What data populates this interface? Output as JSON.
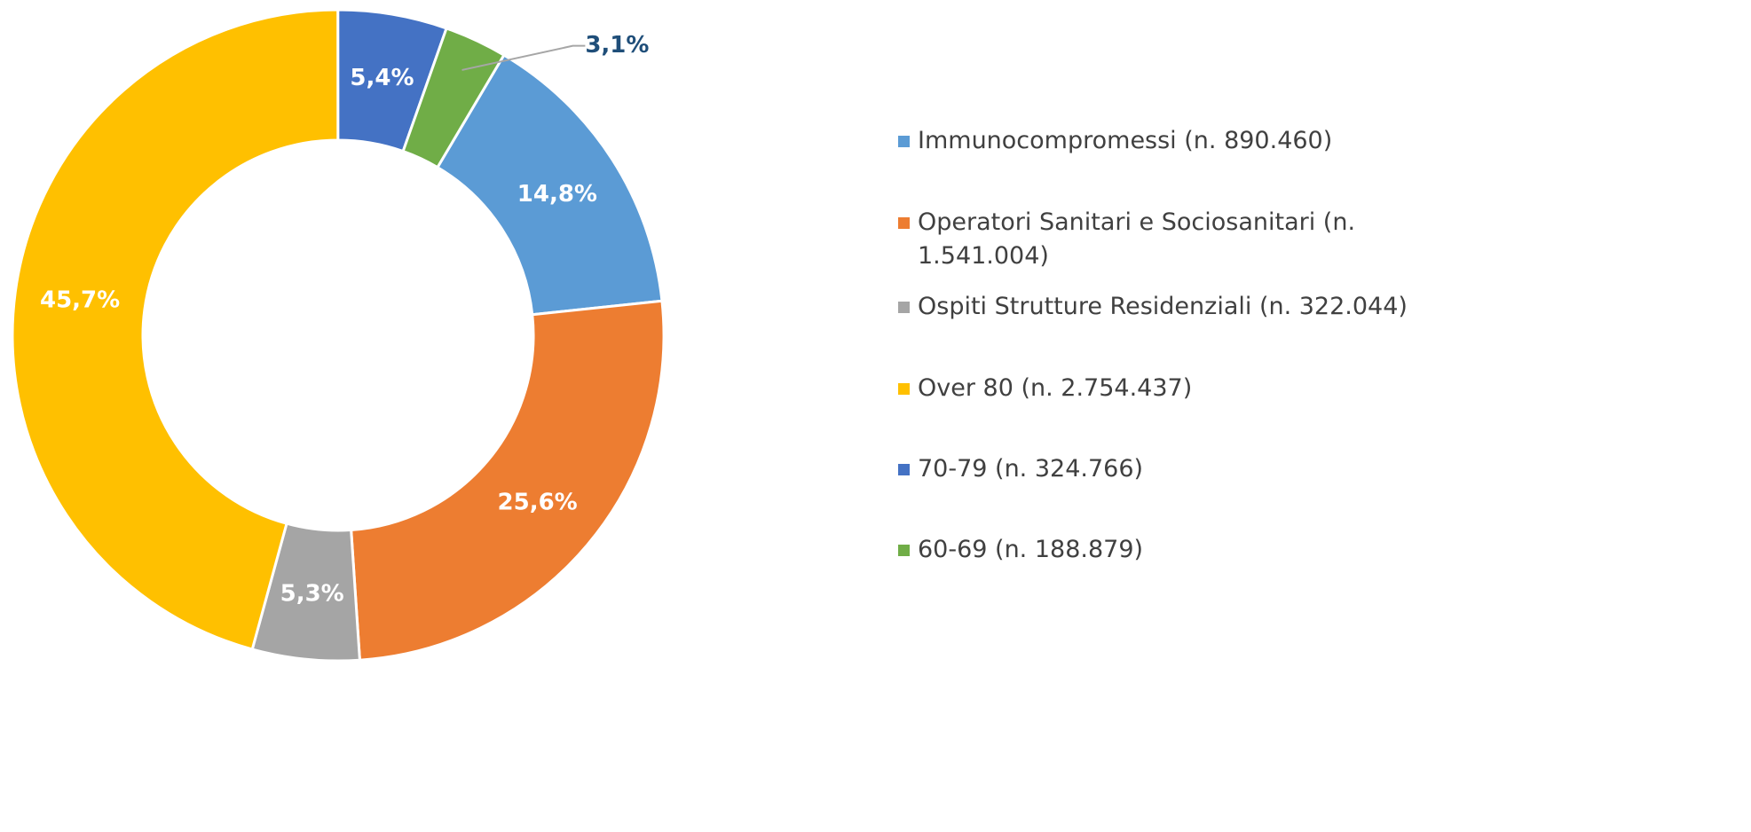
{
  "chart_data": {
    "type": "donut",
    "categories": [
      "Immunocompromessi (n. 890.460)",
      "Operatori Sanitari e Sociosanitari (n. 1.541.004)",
      "Ospiti Strutture Residenziali (n. 322.044)",
      "Over 80 (n. 2.754.437)",
      "70-79 (n. 324.766)",
      "60-69 (n. 188.879)"
    ],
    "values": [
      14.8,
      25.6,
      5.3,
      45.7,
      5.4,
      3.1
    ],
    "value_labels": [
      "14,8%",
      "25,6%",
      "5,3%",
      "45,7%",
      "5,4%",
      "3,1%"
    ],
    "colors": [
      "#5b9bd5",
      "#ed7d31",
      "#a5a5a5",
      "#ffc000",
      "#4472c4",
      "#70ad47"
    ],
    "legend": "right"
  }
}
